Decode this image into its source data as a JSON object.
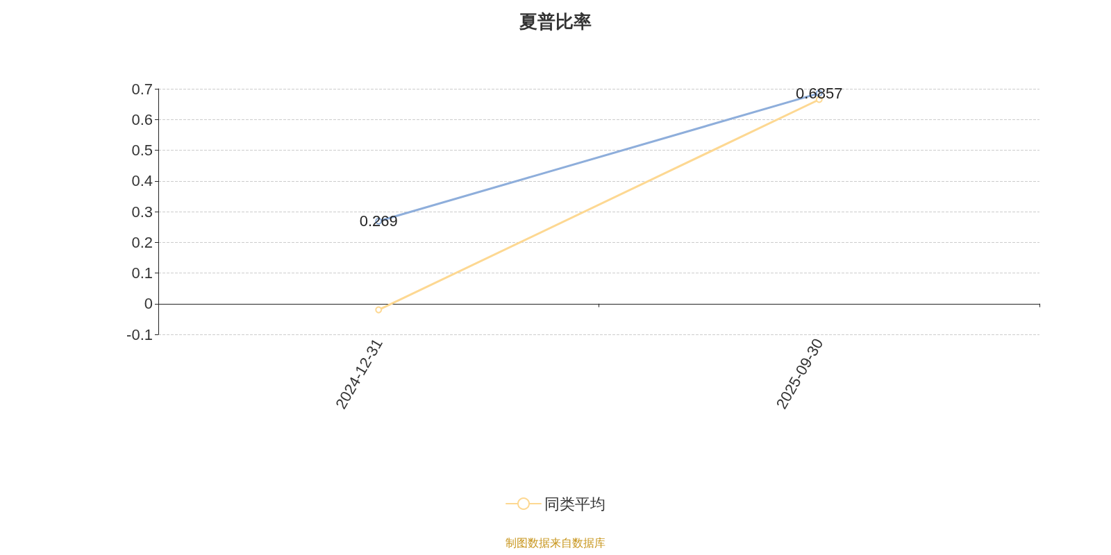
{
  "chart_data": {
    "type": "line",
    "title": "夏普比率",
    "categories": [
      "2024-12-31",
      "2025-09-30"
    ],
    "series": [
      {
        "color": "#8eaedb",
        "values": [
          0.269,
          0.6857
        ],
        "value_labels": [
          "0.269",
          "0.6857"
        ]
      },
      {
        "name": "同类平均",
        "color": "#fdd892",
        "values": [
          -0.02,
          0.665
        ]
      }
    ],
    "ylim": [
      -0.1,
      0.7
    ],
    "yticks": [
      -0.1,
      0,
      0.1,
      0.2,
      0.3,
      0.4,
      0.5,
      0.6,
      0.7
    ],
    "grid": "y",
    "legend": "bottom",
    "marker": "circle",
    "line_style": "solid",
    "annotations": [
      "制图数据来自数据库"
    ]
  }
}
